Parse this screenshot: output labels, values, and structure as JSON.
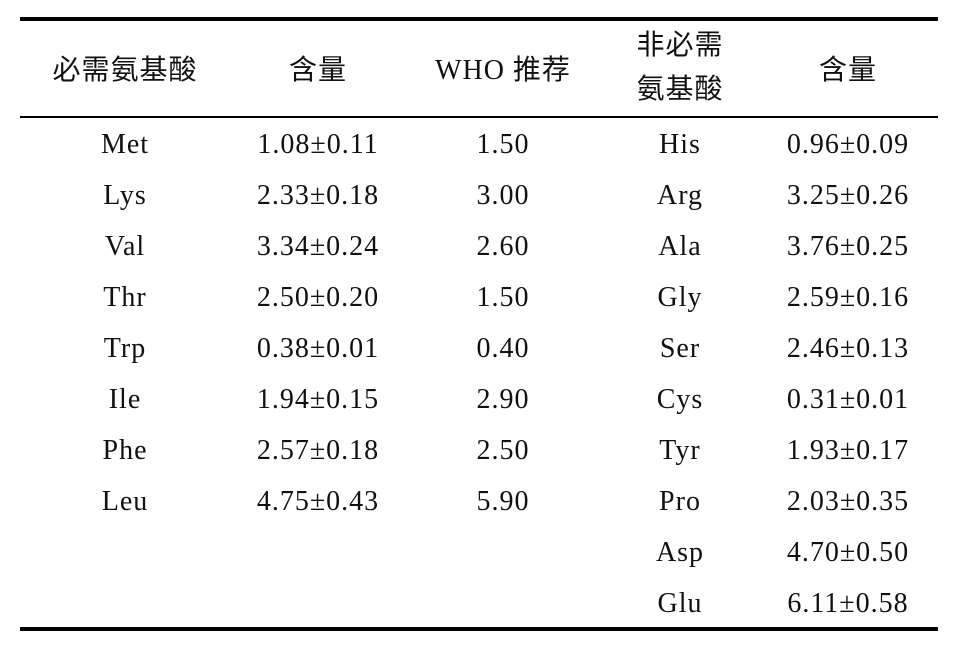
{
  "table": {
    "header": [
      "必需氨基酸",
      "含量",
      "WHO 推荐",
      "非必需氨基酸",
      "含量"
    ],
    "rows": [
      [
        "Met",
        "1.08±0.11",
        "1.50",
        "His",
        "0.96±0.09"
      ],
      [
        "Lys",
        "2.33±0.18",
        "3.00",
        "Arg",
        "3.25±0.26"
      ],
      [
        "Val",
        "3.34±0.24",
        "2.60",
        "Ala",
        "3.76±0.25"
      ],
      [
        "Thr",
        "2.50±0.20",
        "1.50",
        "Gly",
        "2.59±0.16"
      ],
      [
        "Trp",
        "0.38±0.01",
        "0.40",
        "Ser",
        "2.46±0.13"
      ],
      [
        "Ile",
        "1.94±0.15",
        "2.90",
        "Cys",
        "0.31±0.01"
      ],
      [
        "Phe",
        "2.57±0.18",
        "2.50",
        "Tyr",
        "1.93±0.17"
      ],
      [
        "Leu",
        "4.75±0.43",
        "5.90",
        "Pro",
        "2.03±0.35"
      ],
      [
        null,
        null,
        null,
        "Asp",
        "4.70±0.50"
      ],
      [
        null,
        null,
        null,
        "Glu",
        "6.11±0.58"
      ]
    ]
  }
}
